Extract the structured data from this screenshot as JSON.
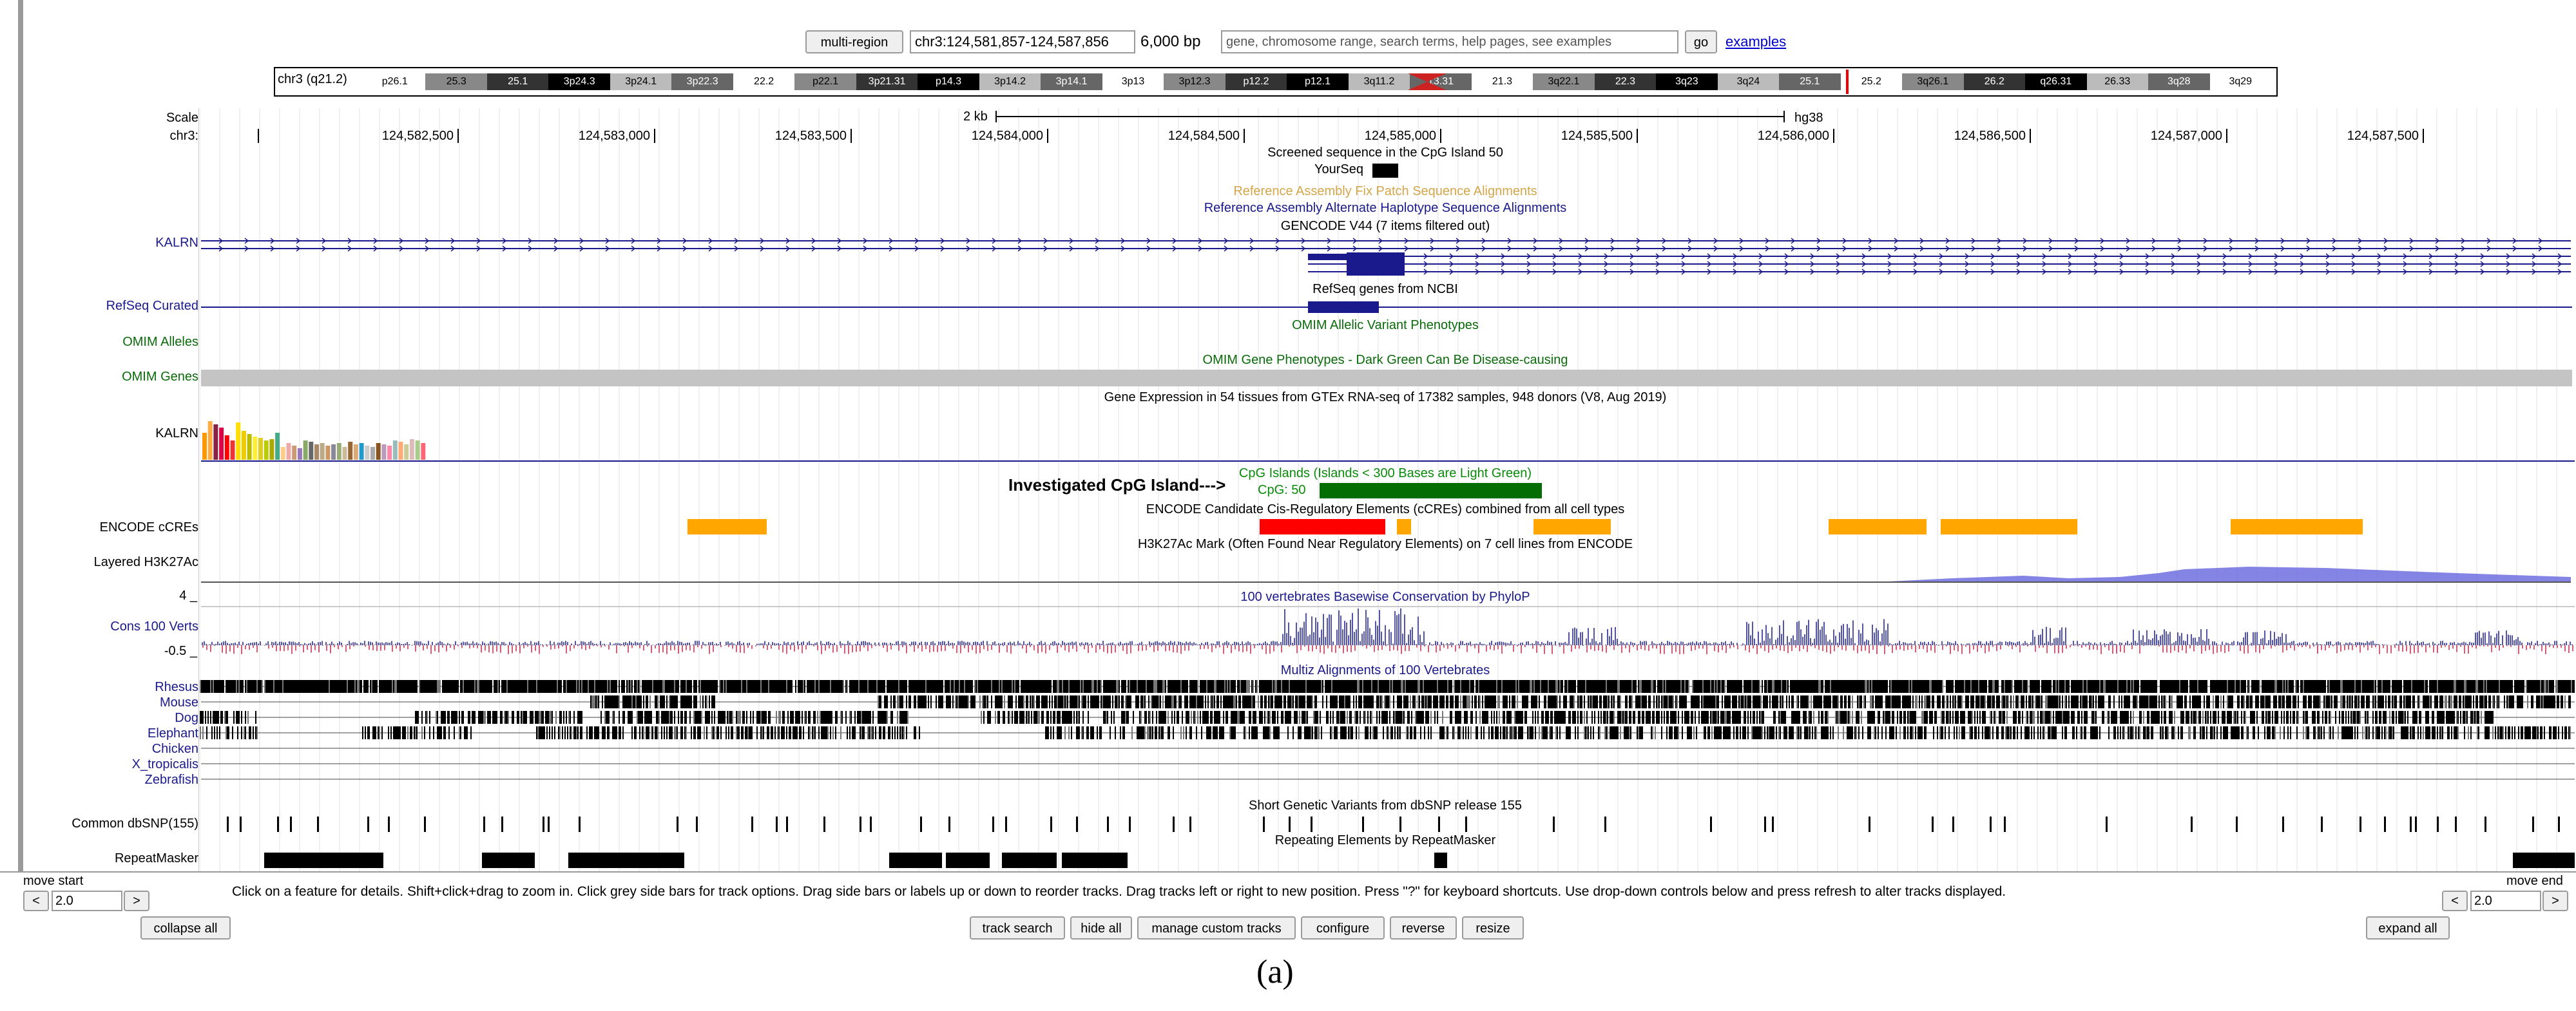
{
  "nav": {
    "multi_region": "multi-region",
    "position": "chr3:124,581,857-124,587,856",
    "size": "6,000 bp",
    "search_placeholder": "gene, chromosome range, search terms, help pages, see examples",
    "go": "go",
    "examples": "examples"
  },
  "ideogram": {
    "chrom_label": "chr3 (q21.2)",
    "bands": [
      "p26.1",
      "25.3",
      "25.1",
      "3p24.3",
      "3p24.1",
      "3p22.3",
      "22.2",
      "p22.1",
      "3p21.31",
      "p14.3",
      "3p14.2",
      "3p14.1",
      "3p13",
      "3p12.3",
      "p12.2",
      "p12.1",
      "3q11.2",
      "13.31",
      "21.3",
      "3q22.1",
      "22.3",
      "3q23",
      "3q24",
      "25.1",
      "25.2",
      "3q26.1",
      "26.2",
      "q26.31",
      "26.33",
      "3q28",
      "3q29"
    ]
  },
  "ruler": {
    "scale_label": "Scale",
    "chrom_label": "chr3:",
    "scale_bar": "2 kb",
    "assembly": "hg38",
    "ticks": [
      "124,582,500",
      "124,583,000",
      "124,583,500",
      "124,584,000",
      "124,584,500",
      "124,585,000",
      "124,585,500",
      "124,586,000",
      "124,586,500",
      "124,587,000",
      "124,587,500"
    ]
  },
  "tracks": {
    "screened_title": "Screened sequence in the CpG Island 50",
    "yourseq": "YourSeq",
    "fix_patch": "Reference Assembly Fix Patch Sequence Alignments",
    "alt_haplo": "Reference Assembly Alternate Haplotype Sequence Alignments",
    "gencode": "GENCODE V44 (7 items filtered out)",
    "kalrn": "KALRN",
    "refseq_curated": "RefSeq Curated",
    "refseq_title": "RefSeq genes from NCBI",
    "omim_alleles": "OMIM Alleles",
    "omim_allelic_title": "OMIM Allelic Variant Phenotypes",
    "omim_gene_title": "OMIM Gene Phenotypes - Dark Green Can Be Disease-causing",
    "omim_genes": "OMIM Genes",
    "gtex_title": "Gene Expression in 54 tissues from GTEx RNA-seq of 17382 samples, 948 donors (V8, Aug 2019)",
    "gtex_label": "KALRN",
    "investigated": "Investigated CpG Island--->",
    "cpg_title": "CpG Islands (Islands < 300 Bases are Light Green)",
    "cpg_item": "CpG: 50",
    "encode_title": "ENCODE Candidate Cis-Regulatory Elements (cCREs) combined from all cell types",
    "encode_label": "ENCODE cCREs",
    "h3k27_title": "H3K27Ac Mark (Often Found Near Regulatory Elements) on 7 cell lines from ENCODE",
    "h3k27_label": "Layered H3K27Ac",
    "cons_title": "100 vertebrates Basewise Conservation by PhyloP",
    "cons_max": "4 _",
    "cons_label": "Cons 100 Verts",
    "cons_min": "-0.5 _",
    "multiz_title": "Multiz Alignments of 100 Vertebrates",
    "species": [
      "Rhesus",
      "Mouse",
      "Dog",
      "Elephant",
      "Chicken",
      "X_tropicalis",
      "Zebrafish"
    ],
    "dbsnp_label": "Common dbSNP(155)",
    "dbsnp_title": "Short Genetic Variants from dbSNP release 155",
    "rmsk_title": "Repeating Elements by RepeatMasker",
    "rmsk_label": "RepeatMasker"
  },
  "controls": {
    "move_start": "move start",
    "move_end": "move end",
    "left_arrow": "<",
    "right_arrow": ">",
    "zoom_value": "2.0",
    "help_text": "Click on a feature for details. Shift+click+drag to zoom in. Click grey side bars for track options. Drag side bars or labels up or down to reorder tracks. Drag tracks left or right to new position. Press \"?\" for keyboard shortcuts. Use drop-down controls below and press refresh to alter tracks displayed.",
    "collapse_all": "collapse all",
    "expand_all": "expand all",
    "buttons": [
      "track search",
      "hide all",
      "manage custom tracks",
      "configure",
      "reverse",
      "resize"
    ]
  },
  "caption": "(a)"
}
